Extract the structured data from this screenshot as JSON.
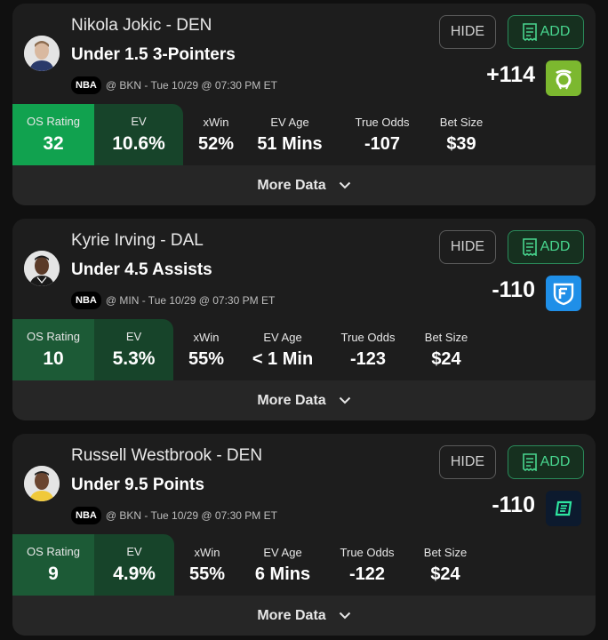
{
  "common": {
    "hide_label": "HIDE",
    "add_label": "ADD",
    "more_label": "More Data",
    "labels": {
      "os": "OS Rating",
      "ev": "EV",
      "xwin": "xWin",
      "ev_age": "EV Age",
      "true_odds": "True Odds",
      "bet_size": "Bet Size"
    }
  },
  "colors": {
    "os_bright": "#11a24f",
    "os_dark": "#1c5a36",
    "ev_dark": "#17442a",
    "add_green": "#48d68f",
    "draftkings": "#7cb82f",
    "fanduel": "#1f8fe8",
    "espnbet": "#0c1a2e"
  },
  "cards": [
    {
      "player": "Nikola Jokic - DEN",
      "market": "Under 1.5 3-Pointers",
      "league": "NBA",
      "game": "@ BKN - Tue 10/29 @ 07:30 PM ET",
      "odds": "+114",
      "book": "draftkings-icon",
      "os_rating": "32",
      "ev": "10.6%",
      "xwin": "52%",
      "ev_age": "51 Mins",
      "true_odds": "-107",
      "bet_size": "$39"
    },
    {
      "player": "Kyrie Irving - DAL",
      "market": "Under 4.5 Assists",
      "league": "NBA",
      "game": "@ MIN - Tue 10/29 @ 07:30 PM ET",
      "odds": "-110",
      "book": "fanduel-icon",
      "os_rating": "10",
      "ev": "5.3%",
      "xwin": "55%",
      "ev_age": "< 1 Min",
      "true_odds": "-123",
      "bet_size": "$24"
    },
    {
      "player": "Russell Westbrook - DEN",
      "market": "Under 9.5 Points",
      "league": "NBA",
      "game": "@ BKN - Tue 10/29 @ 07:30 PM ET",
      "odds": "-110",
      "book": "espn-bet-icon",
      "os_rating": "9",
      "ev": "4.9%",
      "xwin": "55%",
      "ev_age": "6 Mins",
      "true_odds": "-122",
      "bet_size": "$24"
    }
  ]
}
